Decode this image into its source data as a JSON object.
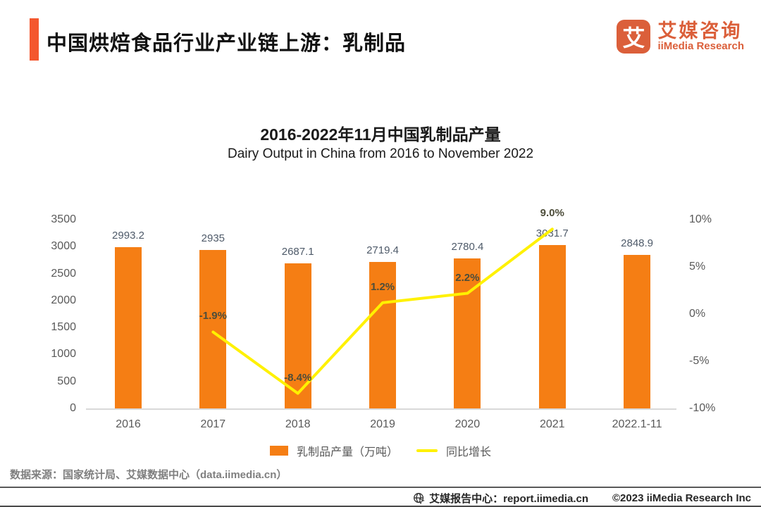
{
  "header": {
    "title": "中国烘焙食品行业产业链上游：乳制品",
    "logo": {
      "glyph": "艾",
      "name_cn": "艾媒咨询",
      "name_en": "iiMedia Research"
    }
  },
  "chart_data": {
    "type": "bar",
    "title": "2016-2022年11月中国乳制品产量",
    "subtitle": "Dairy Output in China from 2016 to November 2022",
    "categories": [
      "2016",
      "2017",
      "2018",
      "2019",
      "2020",
      "2021",
      "2022.1-11"
    ],
    "series": [
      {
        "name": "乳制品产量（万吨）",
        "type": "bar",
        "color": "#F57E14",
        "values": [
          2993.2,
          2935,
          2687.1,
          2719.4,
          2780.4,
          3031.7,
          2848.9
        ],
        "labels": [
          "2993.2",
          "2935",
          "2687.1",
          "2719.4",
          "2780.4",
          "3031.7",
          "2848.9"
        ]
      },
      {
        "name": "同比增长",
        "type": "line",
        "color": "#FFF100",
        "values": [
          null,
          -1.9,
          -8.4,
          1.2,
          2.2,
          9.0,
          null
        ],
        "labels": [
          null,
          "-1.9%",
          "-8.4%",
          "1.2%",
          "2.2%",
          "9.0%",
          null
        ]
      }
    ],
    "left_axis": {
      "min": 0,
      "max": 3500,
      "ticks": [
        "0",
        "500",
        "1000",
        "1500",
        "2000",
        "2500",
        "3000",
        "3500"
      ]
    },
    "right_axis": {
      "min": -10,
      "max": 10,
      "ticks": [
        "-10%",
        "-5%",
        "0%",
        "5%",
        "10%"
      ]
    },
    "grid": false,
    "legend_position": "bottom"
  },
  "footer": {
    "source": "数据来源：国家统计局、艾媒数据中心（data.iimedia.cn）",
    "report_center": "艾媒报告中心：report.iimedia.cn",
    "copyright": "©2023 iiMedia Research Inc"
  },
  "colors": {
    "accent": "#F4572E",
    "logo": "#DB5F3A",
    "bar": "#F57E14",
    "line": "#FFF100"
  }
}
